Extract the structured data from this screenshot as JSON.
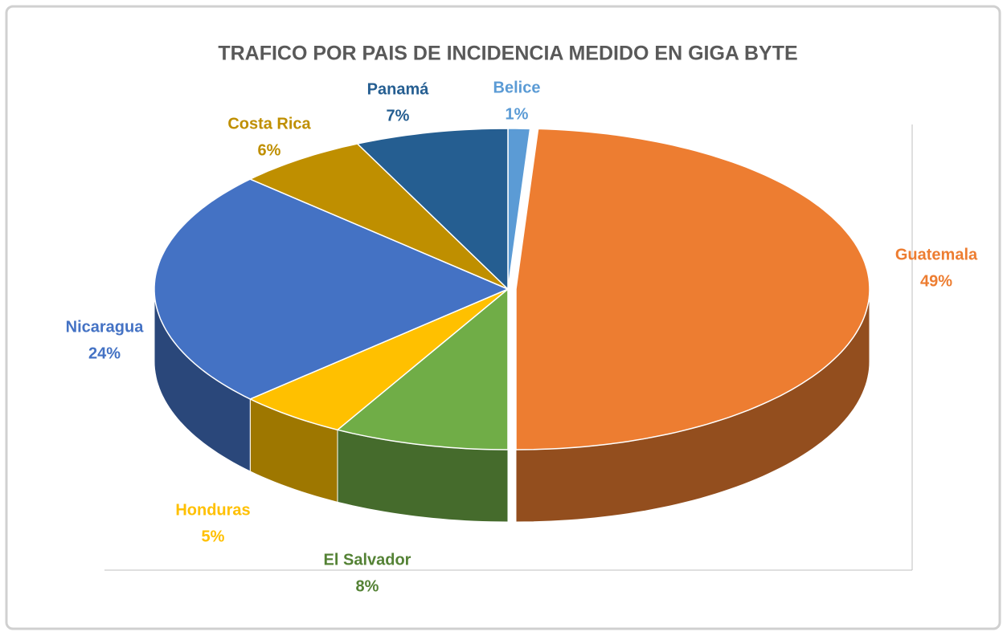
{
  "chart_data": {
    "type": "pie",
    "title": "TRAFICO POR PAIS DE INCIDENCIA MEDIDO EN GIGA BYTE",
    "categories": [
      "Belice",
      "Guatemala",
      "El Salvador",
      "Honduras",
      "Nicaragua",
      "Costa Rica",
      "Panamá"
    ],
    "values": [
      1,
      49,
      8,
      5,
      24,
      6,
      7
    ],
    "value_labels": [
      "1%",
      "49%",
      "8%",
      "5%",
      "24%",
      "6%",
      "7%"
    ],
    "colors": [
      "#5b9bd5",
      "#ed7d31",
      "#70ad47",
      "#ffc000",
      "#4472c4",
      "#bf8f00",
      "#255e91"
    ]
  }
}
